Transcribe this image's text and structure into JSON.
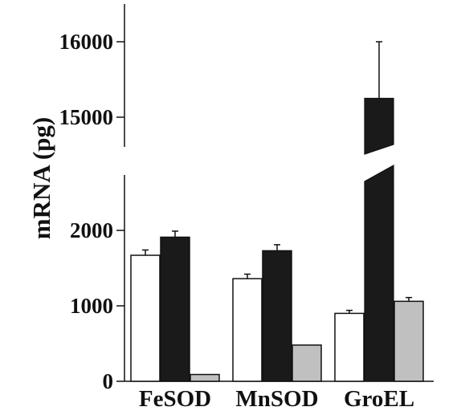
{
  "chart_data": {
    "type": "bar",
    "ylabel": "mRNA (pg)",
    "categories": [
      "FeSOD",
      "MnSOD",
      "GroEL"
    ],
    "series": [
      {
        "values": [
          1670,
          1360,
          900
        ],
        "errors": [
          70,
          60,
          40
        ],
        "color": "#ffffff"
      },
      {
        "values": [
          1910,
          1730,
          15250
        ],
        "errors": [
          80,
          80,
          750
        ],
        "color": "#1a1a1a"
      },
      {
        "values": [
          90,
          480,
          1060
        ],
        "errors": [
          0,
          0,
          50
        ],
        "color": "#c0c0c0"
      }
    ],
    "y_axis_lower": {
      "range": [
        0,
        2800
      ],
      "ticks": [
        "0",
        "1000",
        "2000"
      ]
    },
    "y_axis_upper": {
      "range": [
        14600,
        16500
      ],
      "ticks": [
        "15000",
        "16000"
      ]
    },
    "broken_axis": true,
    "legend": "none",
    "grid": false
  }
}
